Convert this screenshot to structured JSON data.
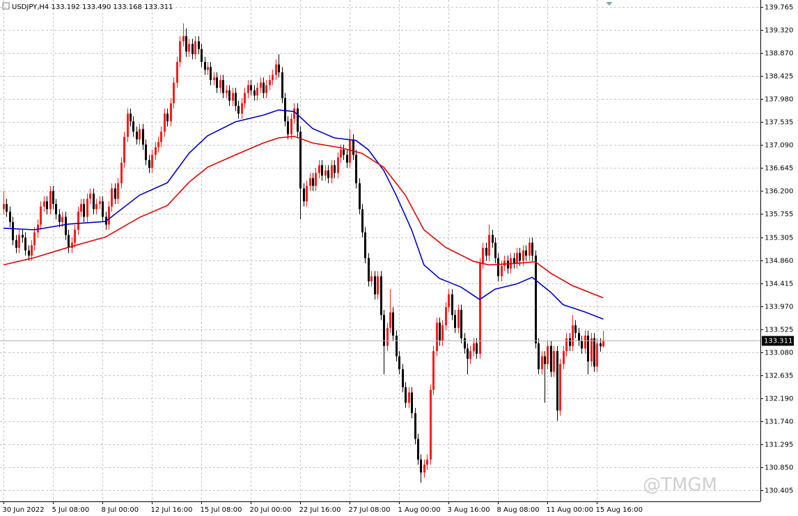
{
  "chart_data": {
    "type": "candlestick",
    "title": "USDJPY,H4  133.192 133.490 133.168 133.311",
    "watermark": "@TMGM",
    "up_color": "#ff1a1a",
    "down_color": "#000000",
    "grid": true,
    "ylim": [
      130.19,
      139.9
    ],
    "yticks": [
      139.765,
      {
        "value": 139.32,
        "label": "139.320"
      },
      {
        "value": 138.87,
        "label": "138.870"
      },
      138.425,
      {
        "value": 137.98,
        "label": "137.980"
      },
      137.535,
      {
        "value": 137.09,
        "label": "137.090"
      },
      136.645,
      {
        "value": 136.2,
        "label": "136.200"
      },
      135.755,
      135.305,
      {
        "value": 134.86,
        "label": "134.860"
      },
      134.415,
      {
        "value": 133.97,
        "label": "133.970"
      },
      133.525,
      {
        "value": 133.08,
        "label": "133.080"
      },
      132.635,
      {
        "value": 132.19,
        "label": "132.190"
      },
      {
        "value": 131.74,
        "label": "131.740"
      },
      131.295,
      {
        "value": 130.85,
        "label": "130.850"
      },
      130.405
    ],
    "categories": [
      "30 Jun 2022",
      null,
      null,
      null,
      null,
      null,
      null,
      null,
      null,
      null,
      null,
      null,
      null,
      null,
      null,
      null,
      "5 Jul 08:00",
      null,
      null,
      null,
      null,
      null,
      null,
      null,
      null,
      null,
      null,
      null,
      null,
      null,
      null,
      null,
      "8 Jul 00:00",
      null,
      null,
      null,
      null,
      null,
      null,
      null,
      null,
      null,
      null,
      null,
      null,
      null,
      null,
      null,
      "12 Jul 16:00",
      null,
      null,
      null,
      null,
      null,
      null,
      null,
      null,
      null,
      null,
      null,
      null,
      null,
      null,
      null,
      "15 Jul 08:00",
      null,
      null,
      null,
      null,
      null,
      null,
      null,
      null,
      null,
      null,
      null,
      null,
      null,
      null,
      null,
      "20 Jul 00:00",
      null,
      null,
      null,
      null,
      null,
      null,
      null,
      null,
      null,
      null,
      null,
      null,
      null,
      null,
      null,
      "22 Jul 16:00",
      null,
      null,
      null,
      null,
      null,
      null,
      null,
      null,
      null,
      null,
      null,
      null,
      null,
      null,
      null,
      "27 Jul 08:00",
      null,
      null,
      null,
      null,
      null,
      null,
      null,
      null,
      null,
      null,
      null,
      null,
      null,
      null,
      null,
      "1 Aug 00:00",
      null,
      null,
      null,
      null,
      null,
      null,
      null,
      null,
      null,
      null,
      null,
      null,
      null,
      null,
      null,
      "3 Aug 16:00",
      null,
      null,
      null,
      null,
      null,
      null,
      null,
      null,
      null,
      null,
      null,
      null,
      null,
      null,
      null,
      "8 Aug 08:00",
      null,
      null,
      null,
      null,
      null,
      null,
      null,
      null,
      null,
      null,
      null,
      null,
      null,
      null,
      null,
      "11 Aug 00:00",
      null,
      null,
      null,
      null,
      null,
      null,
      null,
      null,
      null,
      null,
      null,
      null,
      null,
      null,
      null,
      "15 Aug 16:00",
      null,
      null
    ],
    "open": [
      135.85,
      135.95,
      135.8,
      135.6,
      135.25,
      135.1,
      135.35,
      135.3,
      135.05,
      134.95,
      135.15,
      135.4,
      135.55,
      135.9,
      136.0,
      135.85,
      136.2,
      135.95,
      135.75,
      135.6,
      135.7,
      135.35,
      135.1,
      135.2,
      135.45,
      135.8,
      135.95,
      135.7,
      136.05,
      136.15,
      135.85,
      135.95,
      136.0,
      135.7,
      135.55,
      135.9,
      136.25,
      136.05,
      136.35,
      136.75,
      137.25,
      137.7,
      137.55,
      137.35,
      137.2,
      137.4,
      137.1,
      136.8,
      136.65,
      136.9,
      137.05,
      137.15,
      137.35,
      137.7,
      137.55,
      137.9,
      138.3,
      138.7,
      139.1,
      139.2,
      138.9,
      139.05,
      138.85,
      139.1,
      138.95,
      138.7,
      138.55,
      138.6,
      138.35,
      138.4,
      138.2,
      138.35,
      138.1,
      138.15,
      137.95,
      138.1,
      137.85,
      137.7,
      137.9,
      138.1,
      138.25,
      138.15,
      138.05,
      138.2,
      138.3,
      138.1,
      138.25,
      138.35,
      138.45,
      138.65,
      138.5,
      138.0,
      137.55,
      137.3,
      137.6,
      137.8,
      137.35,
      136.25,
      136.0,
      136.3,
      136.45,
      136.3,
      136.55,
      136.7,
      136.5,
      136.6,
      136.45,
      136.7,
      136.55,
      136.85,
      137.0,
      136.9,
      136.75,
      137.2,
      136.9,
      136.35,
      135.85,
      135.4,
      134.9,
      134.45,
      134.55,
      134.2,
      134.55,
      133.8,
      133.2,
      133.55,
      133.85,
      133.4,
      133.0,
      132.75,
      132.4,
      132.1,
      132.3,
      131.9,
      131.4,
      131.0,
      130.75,
      130.9,
      131.0,
      132.35,
      133.1,
      133.65,
      133.3,
      133.6,
      133.95,
      134.2,
      133.8,
      133.55,
      133.9,
      133.35,
      133.15,
      132.95,
      133.1,
      133.25,
      133.05,
      134.8,
      135.1,
      134.95,
      135.35,
      135.2,
      134.9,
      134.55,
      134.75,
      134.85,
      134.7,
      134.9,
      134.8,
      135.0,
      134.85,
      135.05,
      134.95,
      135.2,
      134.95,
      133.25,
      132.75,
      133.0,
      132.85,
      133.2,
      132.7,
      133.1,
      131.95,
      132.85,
      133.1,
      133.35,
      133.2,
      133.6,
      133.45,
      133.3,
      133.15,
      133.4,
      132.9,
      133.35,
      132.8,
      133.25,
      133.192
    ],
    "high": [
      136.2,
      136.05,
      135.9,
      135.7,
      135.35,
      135.45,
      135.45,
      135.4,
      135.15,
      135.25,
      135.5,
      135.65,
      136.0,
      136.1,
      136.1,
      136.3,
      136.3,
      136.05,
      135.85,
      135.8,
      135.8,
      135.45,
      135.3,
      135.55,
      135.9,
      136.05,
      136.05,
      136.15,
      136.25,
      136.25,
      136.05,
      136.1,
      136.1,
      135.8,
      136.0,
      136.35,
      136.35,
      136.45,
      136.85,
      137.35,
      137.8,
      137.8,
      137.65,
      137.45,
      137.5,
      137.5,
      137.2,
      136.9,
      137.0,
      137.15,
      137.25,
      137.45,
      137.8,
      137.8,
      138.0,
      138.4,
      138.8,
      139.2,
      139.45,
      139.35,
      139.15,
      139.15,
      139.2,
      139.2,
      139.05,
      138.8,
      138.7,
      138.7,
      138.5,
      138.5,
      138.45,
      138.45,
      138.25,
      138.25,
      138.2,
      138.2,
      137.95,
      138.0,
      138.2,
      138.35,
      138.35,
      138.25,
      138.3,
      138.4,
      138.4,
      138.35,
      138.45,
      138.55,
      138.75,
      138.85,
      138.6,
      138.1,
      137.65,
      137.7,
      137.9,
      137.9,
      137.45,
      136.35,
      136.4,
      136.55,
      136.55,
      136.65,
      136.8,
      136.8,
      136.7,
      136.7,
      136.8,
      136.8,
      136.95,
      137.1,
      137.1,
      137.0,
      137.4,
      137.3,
      137.0,
      136.45,
      135.95,
      135.5,
      135.0,
      134.65,
      134.65,
      134.65,
      134.65,
      133.9,
      133.65,
      134.3,
      133.95,
      133.5,
      133.1,
      132.85,
      132.5,
      132.4,
      132.4,
      132.0,
      131.5,
      131.1,
      131.0,
      131.1,
      132.45,
      133.2,
      133.75,
      133.75,
      133.7,
      134.05,
      134.3,
      134.3,
      133.9,
      134.0,
      134.0,
      133.45,
      133.25,
      133.2,
      133.35,
      133.35,
      134.9,
      135.2,
      135.2,
      135.55,
      135.45,
      135.3,
      135.0,
      134.85,
      134.95,
      134.95,
      135.0,
      135.0,
      135.1,
      135.1,
      135.15,
      135.15,
      135.3,
      135.3,
      135.05,
      133.35,
      133.1,
      133.1,
      133.3,
      133.3,
      133.2,
      133.2,
      132.95,
      133.2,
      133.45,
      133.45,
      133.8,
      133.7,
      133.55,
      133.4,
      133.5,
      133.5,
      133.45,
      133.45,
      133.35,
      133.35,
      133.49
    ],
    "low": [
      135.75,
      135.7,
      135.5,
      135.15,
      135.0,
      135.0,
      135.2,
      134.95,
      134.85,
      134.85,
      135.05,
      135.3,
      135.45,
      135.8,
      135.75,
      135.75,
      135.85,
      135.65,
      135.5,
      135.5,
      135.25,
      135.0,
      135.0,
      135.1,
      135.35,
      135.7,
      135.6,
      135.6,
      135.95,
      135.75,
      135.75,
      135.85,
      135.6,
      135.45,
      135.45,
      135.8,
      135.95,
      135.95,
      136.25,
      136.65,
      137.15,
      137.45,
      137.25,
      137.1,
      137.1,
      137.0,
      136.7,
      136.55,
      136.55,
      136.8,
      136.95,
      137.05,
      137.25,
      137.45,
      137.45,
      137.8,
      138.2,
      138.6,
      139.0,
      138.8,
      138.8,
      138.75,
      138.75,
      138.85,
      138.6,
      138.45,
      138.45,
      138.25,
      138.25,
      138.1,
      138.1,
      138.0,
      138.0,
      137.85,
      137.85,
      137.75,
      137.6,
      137.6,
      137.8,
      138.0,
      138.05,
      137.95,
      137.95,
      138.1,
      138.0,
      138.0,
      138.15,
      138.25,
      138.35,
      138.4,
      137.9,
      137.45,
      137.2,
      137.2,
      137.5,
      137.25,
      135.65,
      135.9,
      135.9,
      136.2,
      136.2,
      136.2,
      136.45,
      136.4,
      136.4,
      136.35,
      136.35,
      136.45,
      136.45,
      136.75,
      136.8,
      136.65,
      136.65,
      136.8,
      136.25,
      135.75,
      135.3,
      134.8,
      134.35,
      134.35,
      134.1,
      134.1,
      133.7,
      132.65,
      133.1,
      133.45,
      133.3,
      132.9,
      132.65,
      132.3,
      132.0,
      132.0,
      131.8,
      131.3,
      130.9,
      130.55,
      130.65,
      130.8,
      130.9,
      132.25,
      133.0,
      133.2,
      133.2,
      133.5,
      133.85,
      133.7,
      133.45,
      133.45,
      133.25,
      133.05,
      132.65,
      132.85,
      133.0,
      132.95,
      132.95,
      134.7,
      134.85,
      134.85,
      135.1,
      134.8,
      134.45,
      134.45,
      134.65,
      134.6,
      134.6,
      134.7,
      134.7,
      134.75,
      134.75,
      134.85,
      134.85,
      134.85,
      133.15,
      132.65,
      132.65,
      132.1,
      132.75,
      132.6,
      132.6,
      131.75,
      131.85,
      132.75,
      133.0,
      133.1,
      133.1,
      133.35,
      133.2,
      133.05,
      133.05,
      132.65,
      132.8,
      132.7,
      132.7,
      133.09,
      133.168
    ],
    "close": [
      135.95,
      135.8,
      135.6,
      135.25,
      135.1,
      135.35,
      135.3,
      135.05,
      134.95,
      135.15,
      135.4,
      135.55,
      135.9,
      136.0,
      135.85,
      136.2,
      135.95,
      135.75,
      135.6,
      135.7,
      135.35,
      135.1,
      135.2,
      135.45,
      135.8,
      135.95,
      135.7,
      136.05,
      136.15,
      135.85,
      135.95,
      136.0,
      135.7,
      135.55,
      135.9,
      136.25,
      136.05,
      136.35,
      136.75,
      137.25,
      137.7,
      137.55,
      137.35,
      137.2,
      137.4,
      137.1,
      136.8,
      136.65,
      136.9,
      137.05,
      137.15,
      137.35,
      137.7,
      137.55,
      137.9,
      138.3,
      138.7,
      139.1,
      139.2,
      138.9,
      139.05,
      138.85,
      139.1,
      138.95,
      138.7,
      138.55,
      138.6,
      138.35,
      138.4,
      138.2,
      138.35,
      138.1,
      138.15,
      137.95,
      138.1,
      137.85,
      137.7,
      137.9,
      138.1,
      138.25,
      138.15,
      138.05,
      138.2,
      138.3,
      138.1,
      138.25,
      138.35,
      138.45,
      138.65,
      138.5,
      138.0,
      137.55,
      137.3,
      137.6,
      137.8,
      137.35,
      136.25,
      136.0,
      136.3,
      136.45,
      136.3,
      136.55,
      136.7,
      136.5,
      136.6,
      136.45,
      136.7,
      136.55,
      136.85,
      137.0,
      136.9,
      136.75,
      137.2,
      136.9,
      136.35,
      135.85,
      135.4,
      134.9,
      134.45,
      134.55,
      134.2,
      134.55,
      133.8,
      133.2,
      133.55,
      133.85,
      133.4,
      133.0,
      132.75,
      132.4,
      132.1,
      132.3,
      131.9,
      131.4,
      131.0,
      130.75,
      130.9,
      131.0,
      132.35,
      133.1,
      133.65,
      133.3,
      133.6,
      133.95,
      134.2,
      133.8,
      133.55,
      133.9,
      133.35,
      133.15,
      132.95,
      133.1,
      133.25,
      133.05,
      134.8,
      135.1,
      134.95,
      135.35,
      135.2,
      134.9,
      134.55,
      134.75,
      134.85,
      134.7,
      134.9,
      134.8,
      135.0,
      134.85,
      135.05,
      134.95,
      135.2,
      134.95,
      133.25,
      132.75,
      133.0,
      132.85,
      133.2,
      132.7,
      133.1,
      131.95,
      132.85,
      133.1,
      133.35,
      133.2,
      133.6,
      133.45,
      133.3,
      133.15,
      133.4,
      132.9,
      133.35,
      132.8,
      133.25,
      133.192,
      133.311
    ],
    "series": [
      {
        "color": "#0000c8",
        "x": [
          0,
          10,
          21,
          33,
          44,
          53,
          60,
          66,
          75,
          84,
          89,
          94,
          100,
          107,
          114,
          118,
          123,
          127,
          132,
          136,
          141,
          148,
          154,
          159,
          166,
          171,
          177,
          181,
          188,
          194
        ],
        "values": [
          135.48,
          135.45,
          135.56,
          135.61,
          136.12,
          136.36,
          136.93,
          137.27,
          137.54,
          137.67,
          137.77,
          137.74,
          137.41,
          137.23,
          137.18,
          137.0,
          136.6,
          136.12,
          135.45,
          134.77,
          134.51,
          134.34,
          134.1,
          134.3,
          134.4,
          134.53,
          134.24,
          134.0,
          133.86,
          133.72
        ]
      },
      {
        "color": "#e60000",
        "x": [
          0,
          10,
          21,
          33,
          44,
          53,
          60,
          66,
          75,
          84,
          89,
          94,
          100,
          109,
          116,
          123,
          130,
          136,
          143,
          152,
          157,
          166,
          172,
          177,
          184,
          194
        ],
        "values": [
          134.77,
          134.91,
          135.11,
          135.31,
          135.69,
          135.92,
          136.37,
          136.66,
          136.9,
          137.13,
          137.23,
          137.26,
          137.13,
          137.04,
          136.93,
          136.66,
          136.12,
          135.45,
          135.11,
          134.84,
          134.77,
          134.8,
          134.83,
          134.61,
          134.37,
          134.13
        ]
      }
    ]
  }
}
